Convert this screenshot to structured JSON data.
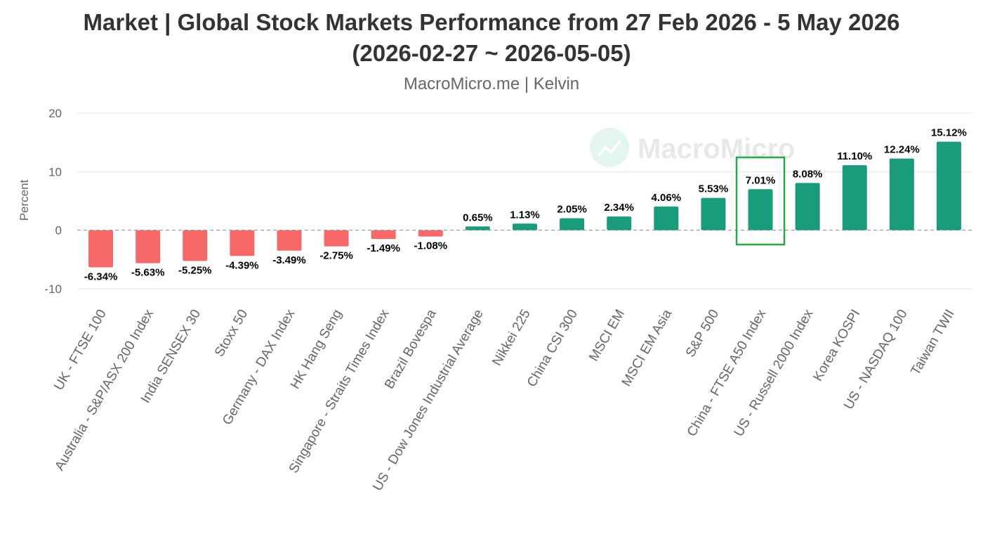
{
  "title": "Market | Global Stock Markets Performance from 27 Feb 2026 - 5 May 2026",
  "title_line2": "(2026-02-27 ~ 2026-05-05)",
  "subtitle": "MacroMicro.me | Kelvin",
  "watermark": "MacroMicro",
  "colors": {
    "positive": "#1a9b7b",
    "negative": "#f76868",
    "highlight_box": "#27a844",
    "grid": "#e6e6e6",
    "zero_line": "#888888"
  },
  "chart_data": {
    "type": "bar",
    "ylabel": "Percent",
    "xlabel": "",
    "ylim": [
      -10,
      20
    ],
    "yticks": [
      -10,
      0,
      10,
      20
    ],
    "grid": true,
    "legend": "none",
    "highlight_category": "China - FTSE A50 Index",
    "categories": [
      "UK - FTSE 100",
      "Australia - S&P/ASX 200 Index",
      "India SENSEX 30",
      "Stoxx 50",
      "Germany - DAX Index",
      "HK Hang Seng",
      "Singapore - Straits Times Index",
      "Brazil Bovespa",
      "US - Dow Jones Industrial Average",
      "Nikkei 225",
      "China CSI 300",
      "MSCI EM",
      "MSCI EM Asia",
      "S&P 500",
      "China - FTSE A50 Index",
      "US - Russell 2000 Index",
      "Korea KOSPI",
      "US - NASDAQ 100",
      "Taiwan TWII"
    ],
    "values": [
      -6.34,
      -5.63,
      -5.25,
      -4.39,
      -3.49,
      -2.75,
      -1.49,
      -1.08,
      0.65,
      1.13,
      2.05,
      2.34,
      4.06,
      5.53,
      7.01,
      8.08,
      11.1,
      12.24,
      15.12
    ],
    "data_labels": [
      "-6.34%",
      "-5.63%",
      "-5.25%",
      "-4.39%",
      "-3.49%",
      "-2.75%",
      "-1.49%",
      "-1.08%",
      "0.65%",
      "1.13%",
      "2.05%",
      "2.34%",
      "4.06%",
      "5.53%",
      "7.01%",
      "8.08%",
      "11.10%",
      "12.24%",
      "15.12%"
    ]
  }
}
